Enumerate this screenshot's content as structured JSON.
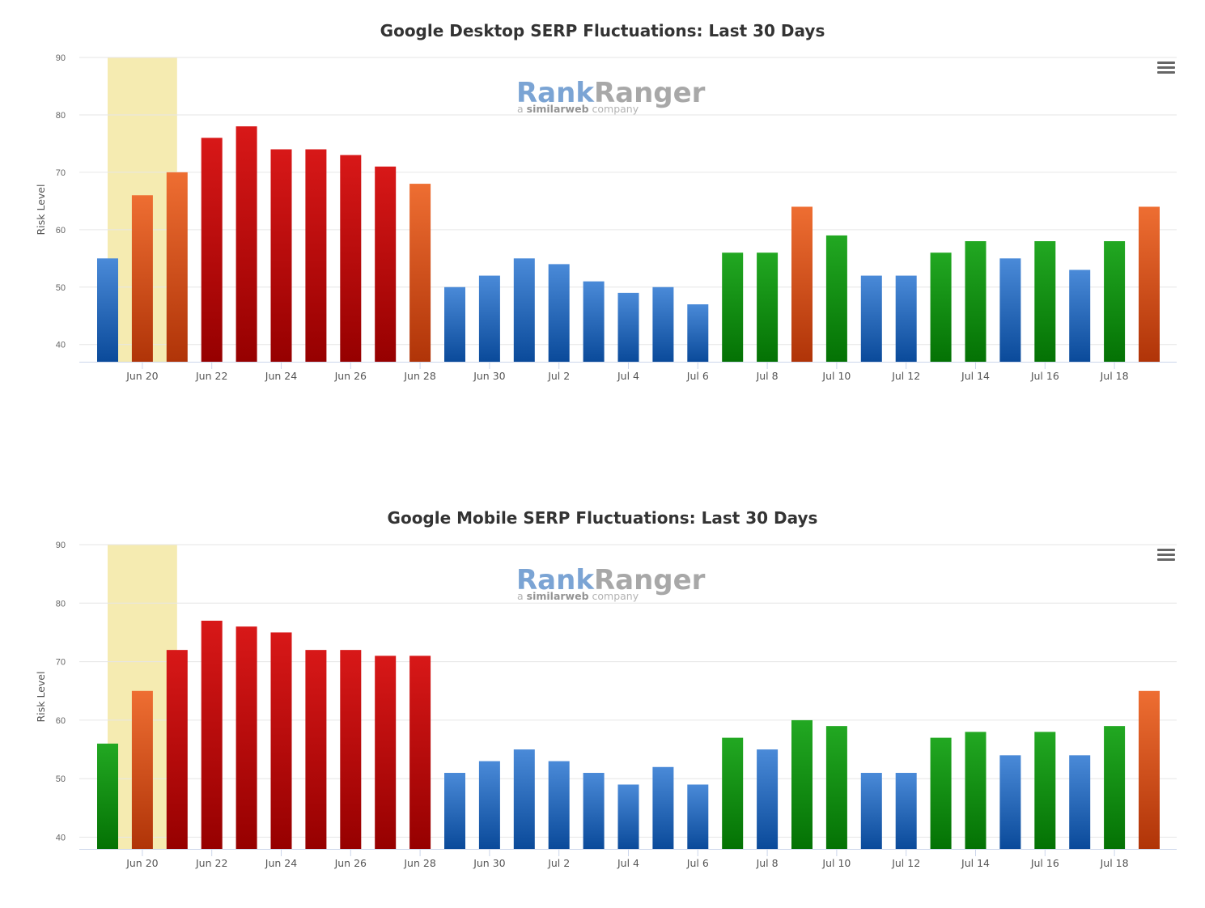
{
  "chart_data": [
    {
      "type": "bar",
      "title": "Google Desktop SERP Fluctuations: Last 30 Days",
      "ylabel": "Risk Level",
      "xlabel": "",
      "ylim": [
        37,
        90
      ],
      "yticks": [
        40,
        50,
        60,
        70,
        80,
        90
      ],
      "x_tick_labels": [
        "Jun 20",
        "Jun 22",
        "Jun 24",
        "Jun 26",
        "Jun 28",
        "Jun 30",
        "Jul 2",
        "Jul 4",
        "Jul 6",
        "Jul 8",
        "Jul 10",
        "Jul 12",
        "Jul 14",
        "Jul 16",
        "Jul 18"
      ],
      "categories": [
        "Jun 19",
        "Jun 20",
        "Jun 21",
        "Jun 22",
        "Jun 23",
        "Jun 24",
        "Jun 25",
        "Jun 26",
        "Jun 27",
        "Jun 28",
        "Jun 29",
        "Jun 30",
        "Jul 1",
        "Jul 2",
        "Jul 3",
        "Jul 4",
        "Jul 5",
        "Jul 6",
        "Jul 7",
        "Jul 8",
        "Jul 9",
        "Jul 10",
        "Jul 11",
        "Jul 12",
        "Jul 13",
        "Jul 14",
        "Jul 15",
        "Jul 16",
        "Jul 17",
        "Jul 18",
        "Jul 19"
      ],
      "values": [
        55,
        66,
        70,
        76,
        78,
        74,
        74,
        73,
        71,
        68,
        50,
        52,
        55,
        54,
        51,
        49,
        50,
        47,
        56,
        56,
        64,
        59,
        52,
        52,
        56,
        58,
        55,
        58,
        53,
        58,
        64
      ],
      "bar_colors": [
        "blue",
        "orange",
        "orange",
        "red",
        "red",
        "red",
        "red",
        "red",
        "red",
        "orange",
        "blue",
        "blue",
        "blue",
        "blue",
        "blue",
        "blue",
        "blue",
        "blue",
        "green",
        "green",
        "orange",
        "green",
        "blue",
        "blue",
        "green",
        "green",
        "blue",
        "green",
        "blue",
        "green",
        "orange"
      ],
      "highlight_band": [
        "Jun 19",
        "Jun 21"
      ],
      "grid": true,
      "watermark": "RankRanger a similarweb company"
    },
    {
      "type": "bar",
      "title": "Google Mobile SERP Fluctuations: Last 30 Days",
      "ylabel": "Risk Level",
      "xlabel": "",
      "ylim": [
        38,
        90
      ],
      "yticks": [
        40,
        50,
        60,
        70,
        80,
        90
      ],
      "x_tick_labels": [
        "Jun 20",
        "Jun 22",
        "Jun 24",
        "Jun 26",
        "Jun 28",
        "Jun 30",
        "Jul 2",
        "Jul 4",
        "Jul 6",
        "Jul 8",
        "Jul 10",
        "Jul 12",
        "Jul 14",
        "Jul 16",
        "Jul 18"
      ],
      "categories": [
        "Jun 19",
        "Jun 20",
        "Jun 21",
        "Jun 22",
        "Jun 23",
        "Jun 24",
        "Jun 25",
        "Jun 26",
        "Jun 27",
        "Jun 28",
        "Jun 29",
        "Jun 30",
        "Jul 1",
        "Jul 2",
        "Jul 3",
        "Jul 4",
        "Jul 5",
        "Jul 6",
        "Jul 7",
        "Jul 8",
        "Jul 9",
        "Jul 10",
        "Jul 11",
        "Jul 12",
        "Jul 13",
        "Jul 14",
        "Jul 15",
        "Jul 16",
        "Jul 17",
        "Jul 18",
        "Jul 19"
      ],
      "values": [
        56,
        65,
        72,
        77,
        76,
        75,
        72,
        72,
        71,
        71,
        51,
        53,
        55,
        53,
        51,
        49,
        52,
        49,
        57,
        55,
        60,
        59,
        51,
        51,
        57,
        58,
        54,
        58,
        54,
        59,
        65
      ],
      "bar_colors": [
        "green",
        "orange",
        "red",
        "red",
        "red",
        "red",
        "red",
        "red",
        "red",
        "red",
        "blue",
        "blue",
        "blue",
        "blue",
        "blue",
        "blue",
        "blue",
        "blue",
        "green",
        "blue",
        "green",
        "green",
        "blue",
        "blue",
        "green",
        "green",
        "blue",
        "green",
        "blue",
        "green",
        "orange"
      ],
      "highlight_band": [
        "Jun 19",
        "Jun 21"
      ],
      "grid": true,
      "watermark": "RankRanger a similarweb company"
    }
  ],
  "colors": {
    "blue": [
      "#4a8ad8",
      "#0a4a9a"
    ],
    "orange": [
      "#ee6e32",
      "#b03408"
    ],
    "red": [
      "#d81818",
      "#960000"
    ],
    "green": [
      "#22a822",
      "#047204"
    ],
    "highlight": "#f5ebb1",
    "grid": "#e6e6e6",
    "axis": "#ccd6eb"
  },
  "watermark": {
    "brand_rank": "Rank",
    "brand_ranger": "Ranger",
    "tagline_a": "a ",
    "tagline_similarweb": "similarweb",
    "tagline_company": " company"
  },
  "menu_icon": "hamburger-menu-icon"
}
